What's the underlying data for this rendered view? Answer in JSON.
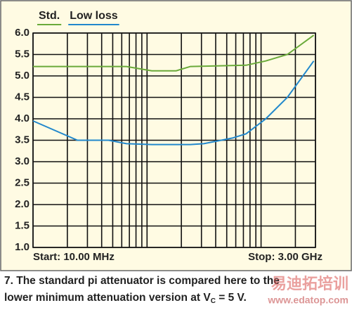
{
  "chart_data": {
    "type": "line",
    "x_scale": "log",
    "legend": "top-left",
    "grid": true,
    "xlim": [
      10,
      3000
    ],
    "xticks": [
      10,
      20,
      30,
      40,
      50,
      60,
      70,
      80,
      90,
      100,
      200,
      300,
      400,
      500,
      600,
      700,
      800,
      900,
      1000,
      2000,
      3000
    ],
    "ylim": [
      1,
      6
    ],
    "yticks": [
      {
        "value": 1,
        "label": "1.0"
      },
      {
        "value": 1.5,
        "label": "1.5"
      },
      {
        "value": 2,
        "label": "2.0"
      },
      {
        "value": 2.5,
        "label": "2.5"
      },
      {
        "value": 3,
        "label": "3.0"
      },
      {
        "value": 3.5,
        "label": "3.5"
      },
      {
        "value": 4,
        "label": "4.0"
      },
      {
        "value": 4.5,
        "label": "4.5"
      },
      {
        "value": 5,
        "label": "5.0"
      },
      {
        "value": 5.5,
        "label": "5.5"
      },
      {
        "value": 6,
        "label": "6.0"
      }
    ],
    "start_label": "Start: 10.00 MHz",
    "stop_label": "Stop: 3.00 GHz",
    "series": [
      {
        "name": "Std.",
        "color": "#6aaa3a",
        "x": [
          10,
          66,
          110,
          180,
          240,
          740,
          1100,
          1700,
          2900
        ],
        "values": [
          5.22,
          5.22,
          5.12,
          5.12,
          5.22,
          5.25,
          5.35,
          5.5,
          5.95
        ]
      },
      {
        "name": "Low loss",
        "color": "#2288cc",
        "x": [
          10,
          24.5,
          46,
          66,
          110,
          240,
          315,
          560,
          740,
          1100,
          1700,
          2900
        ],
        "values": [
          3.95,
          3.5,
          3.5,
          3.42,
          3.4,
          3.4,
          3.42,
          3.55,
          3.65,
          4.0,
          4.5,
          5.35
        ]
      }
    ]
  },
  "caption": {
    "line1": "7. The standard pi attenuator is compared here to the",
    "line2_before": "lower minimum attenuation version at V",
    "subscript": "C",
    "line2_after": " = 5 V."
  },
  "watermark": {
    "brand": "易迪拓培训",
    "url": "www.edatop.com"
  }
}
